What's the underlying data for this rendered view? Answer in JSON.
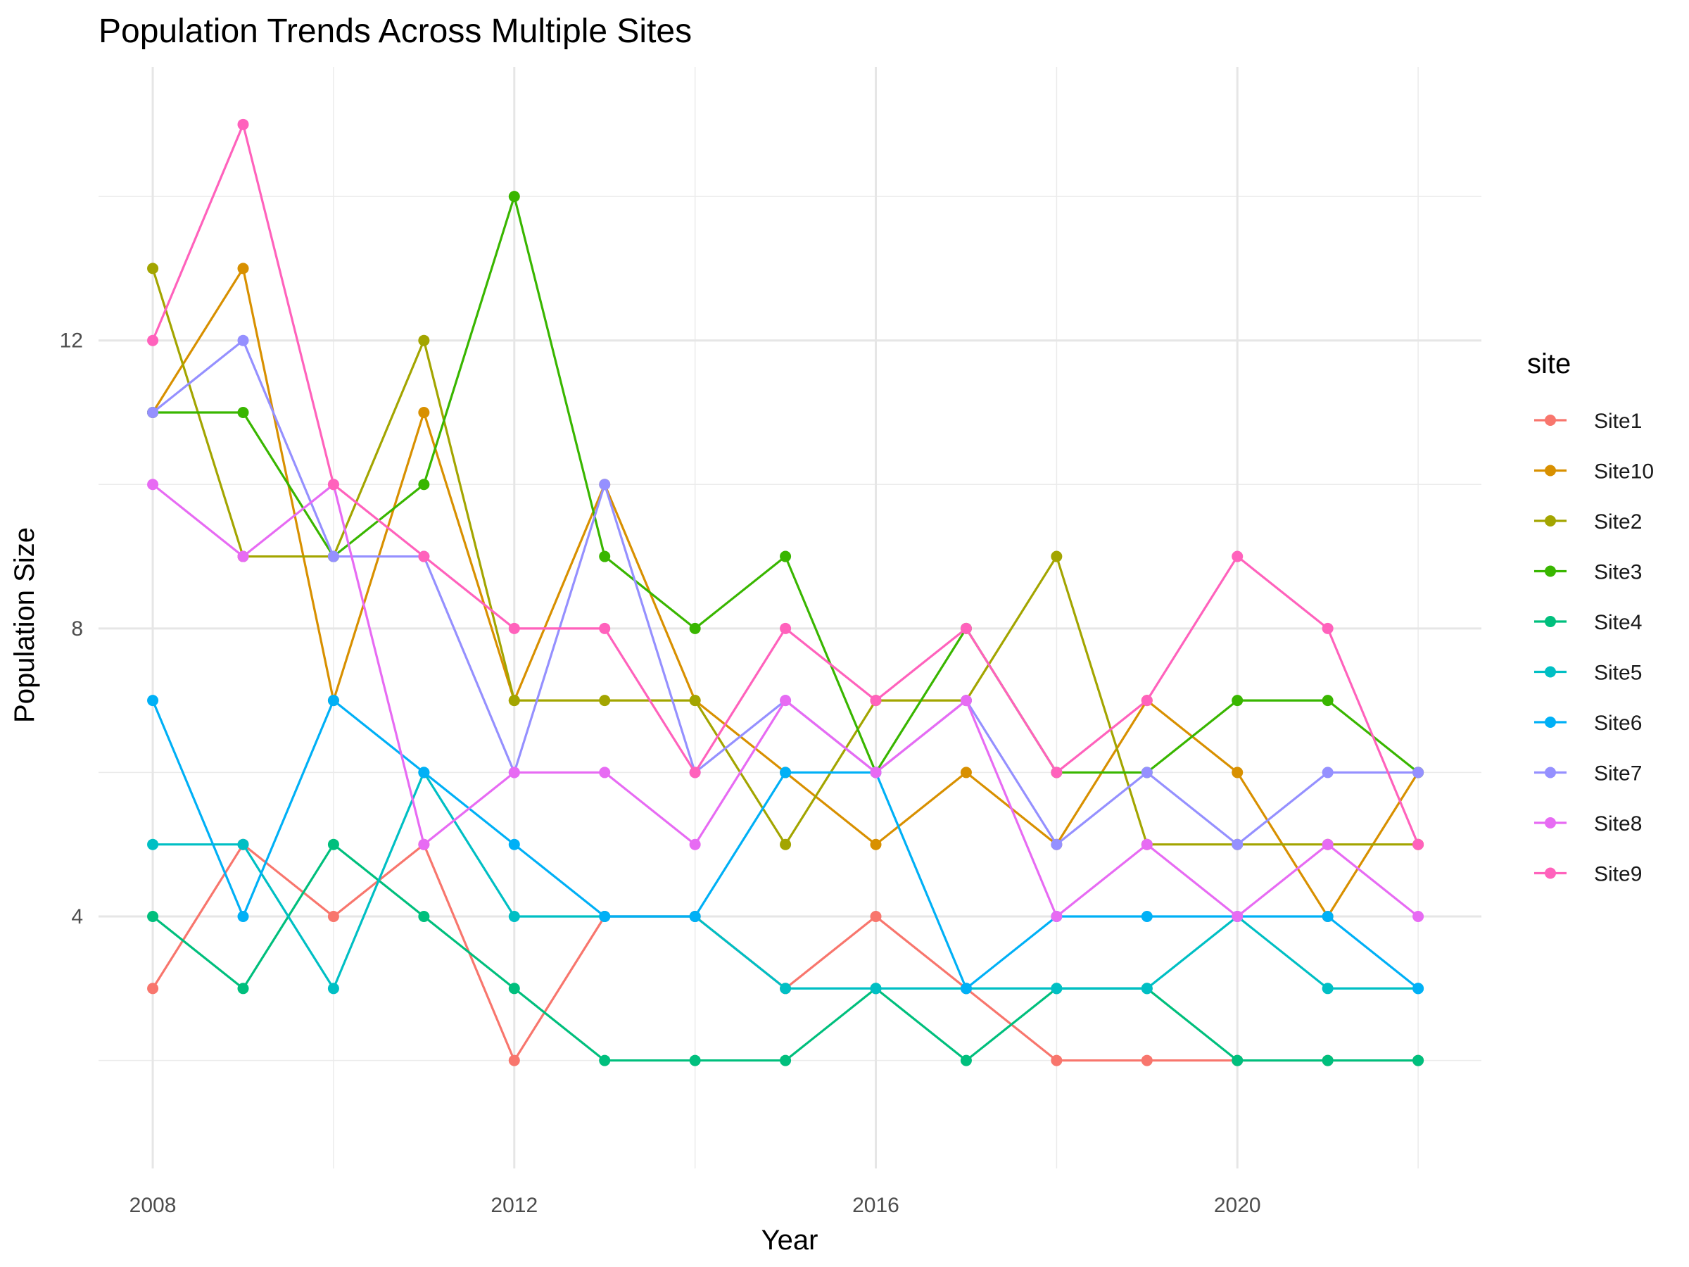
{
  "chart_data": {
    "type": "line",
    "title": "Population Trends Across Multiple Sites",
    "xlabel": "Year",
    "ylabel": "Population Size",
    "x": [
      2008,
      2009,
      2010,
      2011,
      2012,
      2013,
      2014,
      2015,
      2016,
      2017,
      2018,
      2019,
      2020,
      2021,
      2022
    ],
    "xlim": [
      2007.4,
      2022.7
    ],
    "ylim": [
      0.5,
      15.8
    ],
    "x_ticks": [
      "2008",
      "2012",
      "2016",
      "2020"
    ],
    "y_ticks": [
      "4",
      "8",
      "12"
    ],
    "grid": true,
    "legend": {
      "title": "site",
      "placement": "right"
    },
    "series": [
      {
        "name": "Site1",
        "color": "#F8766D",
        "values": [
          3,
          5,
          4,
          5,
          2,
          4,
          4,
          3,
          4,
          3,
          2,
          2,
          2,
          2,
          2
        ]
      },
      {
        "name": "Site10",
        "color": "#D89000",
        "values": [
          11,
          13,
          7,
          11,
          7,
          10,
          7,
          6,
          5,
          6,
          5,
          7,
          6,
          4,
          6
        ]
      },
      {
        "name": "Site2",
        "color": "#A3A500",
        "values": [
          13,
          9,
          9,
          12,
          7,
          7,
          7,
          5,
          7,
          7,
          9,
          5,
          5,
          5,
          5
        ]
      },
      {
        "name": "Site3",
        "color": "#39B600",
        "values": [
          11,
          11,
          9,
          10,
          14,
          9,
          8,
          9,
          6,
          8,
          6,
          6,
          7,
          7,
          6
        ]
      },
      {
        "name": "Site4",
        "color": "#00BF7D",
        "values": [
          4,
          3,
          5,
          4,
          3,
          2,
          2,
          2,
          3,
          2,
          3,
          3,
          2,
          2,
          2
        ]
      },
      {
        "name": "Site5",
        "color": "#00BFC4",
        "values": [
          5,
          5,
          3,
          6,
          4,
          4,
          4,
          3,
          3,
          3,
          3,
          3,
          4,
          3,
          3
        ]
      },
      {
        "name": "Site6",
        "color": "#00B0F6",
        "values": [
          7,
          4,
          7,
          6,
          5,
          4,
          4,
          6,
          6,
          3,
          4,
          4,
          4,
          4,
          3
        ]
      },
      {
        "name": "Site7",
        "color": "#9590FF",
        "values": [
          11,
          12,
          9,
          9,
          6,
          10,
          6,
          7,
          6,
          7,
          5,
          6,
          5,
          6,
          6
        ]
      },
      {
        "name": "Site8",
        "color": "#E76BF3",
        "values": [
          10,
          9,
          10,
          5,
          6,
          6,
          5,
          7,
          6,
          7,
          4,
          5,
          4,
          5,
          4
        ]
      },
      {
        "name": "Site9",
        "color": "#FF62BC",
        "values": [
          12,
          15,
          10,
          9,
          8,
          8,
          6,
          8,
          7,
          8,
          6,
          7,
          9,
          8,
          5
        ]
      }
    ]
  }
}
